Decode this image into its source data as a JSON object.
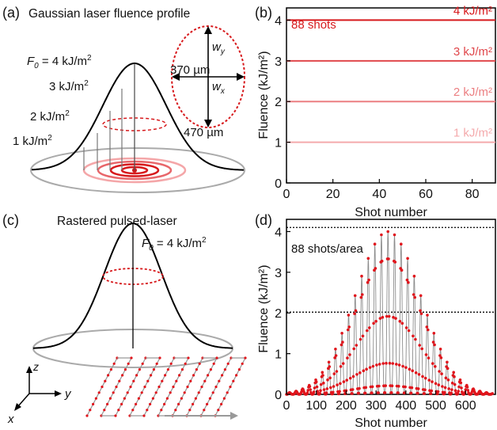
{
  "panel_a": {
    "label": "(a)",
    "title": "Gaussian laser fluence profile",
    "f0_symbol": "F",
    "f0_sub": "0",
    "f0_value": " = 4 kJ/m",
    "levels": [
      {
        "text": "3 kJ/m",
        "sup": "2"
      },
      {
        "text": "2 kJ/m",
        "sup": "2"
      },
      {
        "text": "1 kJ/m",
        "sup": "2"
      }
    ],
    "wy_symbol": "w",
    "wy_sub": "y",
    "wx_symbol": "w",
    "wx_sub": "x",
    "width_x": "370 µm",
    "width_y": "470 µm",
    "sup2": "2",
    "colors": {
      "ring_dark": "#d7191c",
      "ring_mid": "#e8666a",
      "ring_light": "#f4a6a8",
      "dot": "#cc1a1a"
    }
  },
  "panel_c": {
    "label": "(c)",
    "title": "Rastered pulsed-laser",
    "f0_symbol": "F",
    "f0_sub": "0",
    "f0_value": " = 4 kJ/m",
    "sup2": "2",
    "axes": {
      "z": "z",
      "y": "y",
      "x": "x"
    }
  },
  "chart_data": [
    {
      "panel": "(b)",
      "type": "line",
      "annotation": "88 shots",
      "xlabel": "Shot number",
      "ylabel": "Fluence (kJ/m²)",
      "xlim": [
        0,
        90
      ],
      "ylim": [
        0,
        4.3
      ],
      "xticks": [
        0,
        20,
        40,
        60,
        80
      ],
      "yticks": [
        0,
        1,
        2,
        3,
        4
      ],
      "series": [
        {
          "name": "4 kJ/m²",
          "value": 4,
          "color": "#d7191c"
        },
        {
          "name": "3 kJ/m²",
          "value": 3,
          "color": "#e0474b"
        },
        {
          "name": "2 kJ/m²",
          "value": 2,
          "color": "#ec7f82"
        },
        {
          "name": "1 kJ/m²",
          "value": 1,
          "color": "#f4aaac"
        }
      ],
      "grid": false
    },
    {
      "panel": "(d)",
      "type": "scatter",
      "annotation": "88 shots/area",
      "xlabel": "Shot number",
      "ylabel": "Fluence (kJ/m²)",
      "xlim": [
        0,
        700
      ],
      "ylim": [
        0,
        4.3
      ],
      "xticks": [
        0,
        100,
        200,
        300,
        400,
        500,
        600
      ],
      "yticks": [
        0,
        1,
        2,
        3,
        4
      ],
      "reference_lines": [
        4.1,
        2.02
      ],
      "envelope_center": 340,
      "envelope_peak": 4.0,
      "envelope_sigma": 110,
      "pass_period": 22,
      "color": "#e0151c",
      "grid": false
    }
  ]
}
